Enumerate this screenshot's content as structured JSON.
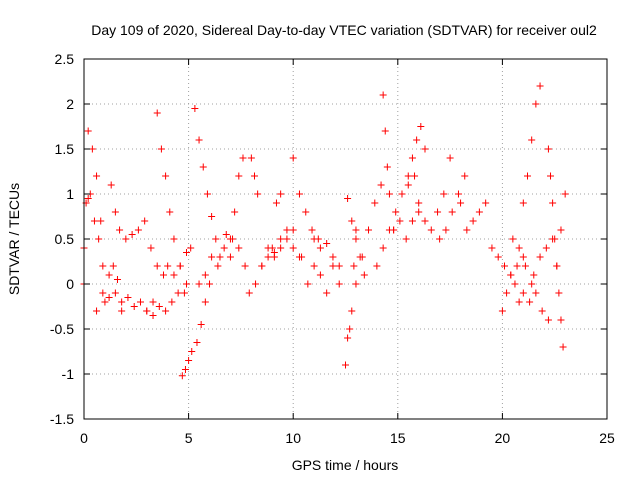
{
  "chart_data": {
    "type": "scatter",
    "title": "Day 109 of 2020, Sidereal Day-to-day VTEC variation (SDTVAR) for receiver oul2",
    "xlabel": "GPS time / hours",
    "ylabel": "SDTVAR / TECUs",
    "xlim": [
      0,
      25
    ],
    "ylim": [
      -1.5,
      2.5
    ],
    "xticks": [
      0,
      5,
      10,
      15,
      20,
      25
    ],
    "xtick_labels": [
      "0",
      "5",
      "10",
      "15",
      "20",
      "25"
    ],
    "yticks": [
      -1.5,
      -1,
      -0.5,
      0,
      0.5,
      1,
      1.5,
      2,
      2.5
    ],
    "ytick_labels": [
      "-1.5",
      "-1",
      "-0.5",
      "0",
      "0.5",
      "1",
      "1.5",
      "2",
      "2.5"
    ],
    "grid": true,
    "marker": "+",
    "color": "#ff0000",
    "tracks": [
      {
        "x": [
          0.0,
          0.2,
          0.4,
          0.6,
          0.8
        ],
        "y": [
          0.4,
          1.7,
          1.5,
          1.2,
          0.7
        ]
      },
      {
        "x": [
          0.0,
          0.1,
          0.2,
          0.3,
          0.5,
          0.7,
          0.9
        ],
        "y": [
          0.0,
          0.9,
          0.95,
          1.0,
          0.7,
          0.5,
          0.2
        ]
      },
      {
        "x": [
          0.6,
          0.9,
          1.2,
          1.5,
          1.8,
          2.1,
          2.4,
          2.7,
          3.0,
          3.3
        ],
        "y": [
          -0.3,
          -0.1,
          -0.15,
          -0.1,
          -0.2,
          -0.15,
          -0.25,
          -0.2,
          -0.3,
          -0.35
        ]
      },
      {
        "x": [
          1.0,
          1.2,
          1.4,
          1.6,
          1.8
        ],
        "y": [
          -0.2,
          0.1,
          0.2,
          0.05,
          -0.3
        ]
      },
      {
        "x": [
          1.3,
          1.5,
          1.7
        ],
        "y": [
          1.1,
          0.8,
          0.6
        ]
      },
      {
        "x": [
          2.0,
          2.3,
          2.6,
          2.9,
          3.2,
          3.5,
          3.8
        ],
        "y": [
          0.5,
          0.55,
          0.6,
          0.7,
          0.4,
          0.2,
          0.1
        ]
      },
      {
        "x": [
          3.5,
          3.7,
          3.9,
          4.1,
          4.3,
          4.6,
          4.9
        ],
        "y": [
          1.9,
          1.5,
          1.2,
          0.8,
          0.5,
          0.2,
          0.0
        ]
      },
      {
        "x": [
          3.0,
          3.3,
          3.6,
          3.9,
          4.2,
          4.5,
          4.8
        ],
        "y": [
          -0.3,
          -0.2,
          -0.25,
          -0.3,
          -0.2,
          -0.1,
          -0.1
        ]
      },
      {
        "x": [
          4.0,
          4.3,
          4.6,
          4.9,
          5.1
        ],
        "y": [
          0.2,
          0.1,
          0.2,
          0.35,
          0.4
        ]
      },
      {
        "x": [
          4.7,
          4.85,
          5.0,
          5.15
        ],
        "y": [
          -1.02,
          -0.95,
          -0.85,
          -0.75
        ]
      },
      {
        "x": [
          5.3,
          5.5,
          5.7,
          5.9,
          6.1,
          6.3
        ],
        "y": [
          1.95,
          1.6,
          1.3,
          1.0,
          0.75,
          0.5
        ]
      },
      {
        "x": [
          5.4,
          5.6,
          5.8,
          6.0
        ],
        "y": [
          -0.65,
          -0.45,
          -0.2,
          0.0
        ]
      },
      {
        "x": [
          5.5,
          5.8,
          6.1,
          6.4,
          6.7,
          7.0
        ],
        "y": [
          0.0,
          0.1,
          0.3,
          0.2,
          0.4,
          0.5
        ]
      },
      {
        "x": [
          6.5,
          6.8,
          7.1,
          7.4,
          7.7
        ],
        "y": [
          0.3,
          0.55,
          0.5,
          0.4,
          0.2
        ]
      },
      {
        "x": [
          7.0,
          7.2,
          7.4,
          7.6
        ],
        "y": [
          0.3,
          0.8,
          1.2,
          1.4
        ]
      },
      {
        "x": [
          8.0,
          8.15,
          8.3
        ],
        "y": [
          1.4,
          1.2,
          1.0
        ]
      },
      {
        "x": [
          7.9,
          8.2,
          8.5,
          8.8,
          9.1,
          9.4,
          9.7,
          10.0
        ],
        "y": [
          -0.1,
          0.0,
          0.2,
          0.3,
          0.35,
          0.4,
          0.5,
          0.6
        ]
      },
      {
        "x": [
          8.5,
          8.8,
          9.1,
          9.4,
          9.7,
          10.0,
          10.3
        ],
        "y": [
          0.2,
          0.4,
          0.3,
          0.5,
          0.6,
          0.4,
          0.3
        ]
      },
      {
        "x": [
          9.0,
          9.2,
          9.4
        ],
        "y": [
          0.4,
          0.9,
          1.0
        ]
      },
      {
        "x": [
          10.0,
          10.3,
          10.6,
          10.9,
          11.2
        ],
        "y": [
          1.4,
          1.0,
          0.8,
          0.6,
          0.5
        ]
      },
      {
        "x": [
          10.4,
          10.7,
          11.0,
          11.3,
          11.6,
          11.9,
          12.2
        ],
        "y": [
          0.3,
          0.0,
          0.2,
          0.1,
          -0.1,
          0.2,
          0.0
        ]
      },
      {
        "x": [
          11.0,
          11.3,
          11.6,
          11.9,
          12.2
        ],
        "y": [
          0.5,
          0.4,
          0.45,
          0.3,
          0.2
        ]
      },
      {
        "x": [
          12.5,
          12.6,
          12.7,
          12.8,
          12.9,
          13.0
        ],
        "y": [
          -0.9,
          -0.6,
          -0.5,
          -0.3,
          0.2,
          0.5
        ]
      },
      {
        "x": [
          12.6,
          12.8,
          13.0,
          13.2,
          13.4
        ],
        "y": [
          0.95,
          0.7,
          0.6,
          0.3,
          0.1
        ]
      },
      {
        "x": [
          13.0,
          13.3,
          13.6,
          13.9,
          14.2
        ],
        "y": [
          0.0,
          0.3,
          0.6,
          0.9,
          1.1
        ]
      },
      {
        "x": [
          14.3,
          14.4,
          14.5,
          14.6,
          14.8
        ],
        "y": [
          2.1,
          1.7,
          1.3,
          1.0,
          0.6
        ]
      },
      {
        "x": [
          14.0,
          14.3,
          14.6,
          14.9,
          15.2,
          15.5,
          15.8
        ],
        "y": [
          0.2,
          0.4,
          0.6,
          0.8,
          1.0,
          1.1,
          1.2
        ]
      },
      {
        "x": [
          14.8,
          15.1,
          15.4,
          15.7,
          16.0
        ],
        "y": [
          0.6,
          0.7,
          0.5,
          0.7,
          0.8
        ]
      },
      {
        "x": [
          15.5,
          15.7,
          15.9,
          16.1,
          16.3
        ],
        "y": [
          1.2,
          1.4,
          1.6,
          1.75,
          1.5
        ]
      },
      {
        "x": [
          16.0,
          16.3,
          16.6,
          16.9,
          17.2,
          17.5
        ],
        "y": [
          0.9,
          0.7,
          0.6,
          0.8,
          1.0,
          1.4
        ]
      },
      {
        "x": [
          17.0,
          17.3,
          17.6,
          17.9,
          18.2
        ],
        "y": [
          0.5,
          0.6,
          0.8,
          1.0,
          1.2
        ]
      },
      {
        "x": [
          18.0,
          18.3,
          18.6,
          18.9,
          19.2
        ],
        "y": [
          0.9,
          0.6,
          0.7,
          0.8,
          0.9
        ]
      },
      {
        "x": [
          19.5,
          19.8,
          20.1,
          20.4,
          20.7,
          21.0
        ],
        "y": [
          0.4,
          0.3,
          0.2,
          0.1,
          0.2,
          0.3
        ]
      },
      {
        "x": [
          20.0,
          20.2,
          20.4,
          20.6,
          20.8
        ],
        "y": [
          -0.3,
          -0.1,
          0.1,
          0.0,
          -0.2
        ]
      },
      {
        "x": [
          20.5,
          20.8,
          21.1,
          21.4
        ],
        "y": [
          0.5,
          0.4,
          0.2,
          0.0
        ]
      },
      {
        "x": [
          21.0,
          21.2,
          21.4,
          21.6,
          21.8
        ],
        "y": [
          0.9,
          1.2,
          1.6,
          2.0,
          2.2
        ]
      },
      {
        "x": [
          21.5,
          21.8,
          22.1,
          22.4
        ],
        "y": [
          0.1,
          0.3,
          0.4,
          0.5
        ]
      },
      {
        "x": [
          21.0,
          21.3,
          21.6,
          21.9,
          22.2
        ],
        "y": [
          -0.1,
          -0.2,
          -0.1,
          -0.3,
          -0.4
        ]
      },
      {
        "x": [
          22.2,
          22.3,
          22.4
        ],
        "y": [
          1.5,
          1.2,
          0.9
        ]
      },
      {
        "x": [
          22.5,
          22.6,
          22.7,
          22.8,
          22.9
        ],
        "y": [
          0.5,
          0.2,
          -0.1,
          -0.4,
          -0.7
        ]
      },
      {
        "x": [
          22.6,
          22.8,
          23.0
        ],
        "y": [
          0.2,
          0.6,
          1.0
        ]
      }
    ]
  }
}
